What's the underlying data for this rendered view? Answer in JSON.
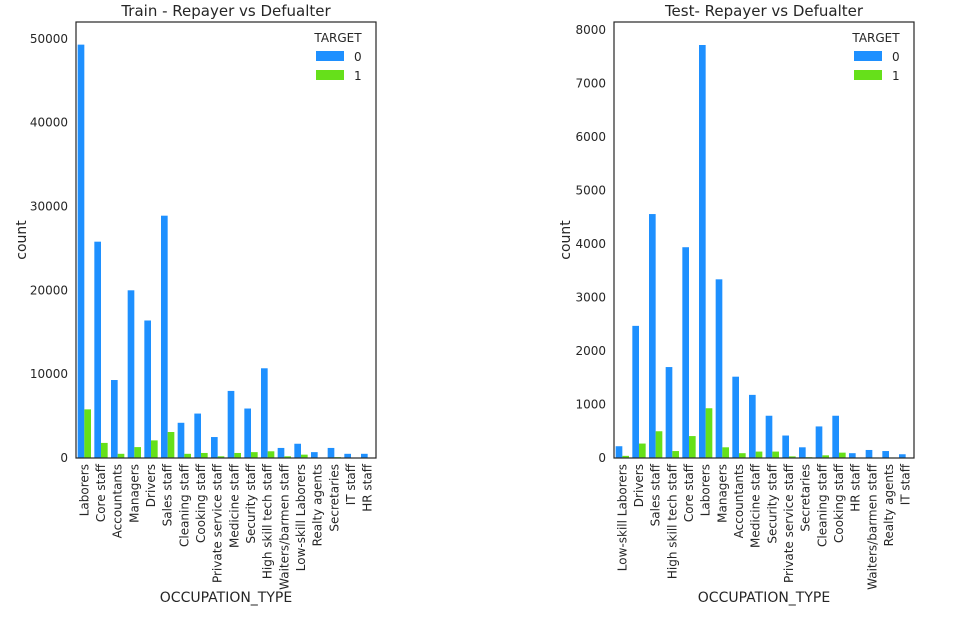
{
  "chart_data": [
    {
      "type": "bar",
      "title": "Train - Repayer vs Defualter",
      "xlabel": "OCCUPATION_TYPE",
      "ylabel": "count",
      "ylim": [
        0,
        52000
      ],
      "yticks": [
        0,
        10000,
        20000,
        30000,
        40000,
        50000
      ],
      "grid": false,
      "legend": {
        "title": "TARGET",
        "placement": "top-right"
      },
      "categories": [
        "Laborers",
        "Core staff",
        "Accountants",
        "Managers",
        "Drivers",
        "Sales staff",
        "Cleaning staff",
        "Cooking staff",
        "Private service staff",
        "Medicine staff",
        "Security staff",
        "High skill tech staff",
        "Waiters/barmen staff",
        "Low-skill Laborers",
        "Realty agents",
        "Secretaries",
        "IT staff",
        "HR staff"
      ],
      "series": [
        {
          "name": "0",
          "color": "#1e90ff",
          "values": [
            49300,
            25800,
            9300,
            20000,
            16400,
            28900,
            4200,
            5300,
            2500,
            8000,
            5900,
            10700,
            1200,
            1700,
            700,
            1200,
            500,
            500
          ]
        },
        {
          "name": "1",
          "color": "#66e01a",
          "values": [
            5800,
            1800,
            500,
            1300,
            2100,
            3100,
            500,
            600,
            200,
            600,
            700,
            800,
            200,
            400,
            60,
            100,
            40,
            40
          ]
        }
      ]
    },
    {
      "type": "bar",
      "title": "Test- Repayer vs Defualter",
      "xlabel": "OCCUPATION_TYPE",
      "ylabel": "count",
      "ylim": [
        0,
        8150
      ],
      "yticks": [
        0,
        1000,
        2000,
        3000,
        4000,
        5000,
        6000,
        7000,
        8000
      ],
      "grid": false,
      "legend": {
        "title": "TARGET",
        "placement": "top-right"
      },
      "categories": [
        "Low-skill Laborers",
        "Drivers",
        "Sales staff",
        "High skill tech staff",
        "Core staff",
        "Laborers",
        "Managers",
        "Accountants",
        "Medicine staff",
        "Security staff",
        "Private service staff",
        "Secretaries",
        "Cleaning staff",
        "Cooking staff",
        "HR staff",
        "Waiters/barmen staff",
        "Realty agents",
        "IT staff"
      ],
      "series": [
        {
          "name": "0",
          "color": "#1e90ff",
          "values": [
            220,
            2470,
            4560,
            1700,
            3940,
            7720,
            3340,
            1520,
            1180,
            790,
            420,
            200,
            590,
            790,
            90,
            150,
            130,
            70
          ]
        },
        {
          "name": "1",
          "color": "#66e01a",
          "values": [
            40,
            270,
            500,
            130,
            410,
            930,
            200,
            90,
            120,
            120,
            30,
            15,
            50,
            100,
            10,
            10,
            10,
            5
          ]
        }
      ]
    }
  ]
}
